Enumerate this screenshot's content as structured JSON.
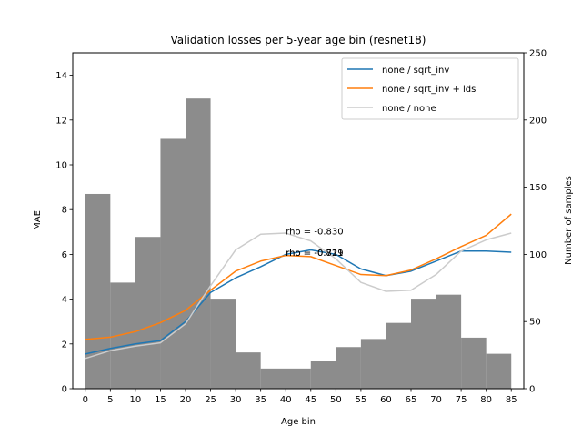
{
  "chart_data": {
    "type": "line",
    "title": "Validation losses per 5-year age bin (resnet18)",
    "xlabel": "Age bin",
    "ylabel": "MAE",
    "ylabel_right": "Number of samples",
    "x": [
      0,
      5,
      10,
      15,
      20,
      25,
      30,
      35,
      40,
      45,
      50,
      55,
      60,
      65,
      70,
      75,
      80,
      85
    ],
    "xlim": [
      -2.5,
      87.5
    ],
    "ylim": [
      0,
      15
    ],
    "ylim_right": [
      0,
      250
    ],
    "y_ticks": [
      0,
      2,
      4,
      6,
      8,
      10,
      12,
      14
    ],
    "y_ticks_right": [
      0,
      50,
      100,
      150,
      200,
      250
    ],
    "grid": false,
    "legend_position": "top-right",
    "series": [
      {
        "name": "none / sqrt_inv",
        "color": "#1f77b4",
        "values": [
          1.55,
          1.8,
          2.0,
          2.15,
          3.0,
          4.3,
          4.95,
          5.45,
          6.0,
          6.2,
          6.0,
          5.35,
          5.05,
          5.25,
          5.7,
          6.15,
          6.15,
          6.1
        ]
      },
      {
        "name": "none / sqrt_inv + lds",
        "color": "#ff7f0e",
        "values": [
          2.2,
          2.3,
          2.55,
          2.95,
          3.5,
          4.4,
          5.25,
          5.7,
          5.95,
          5.9,
          5.5,
          5.1,
          5.05,
          5.3,
          5.8,
          6.35,
          6.85,
          7.8
        ]
      },
      {
        "name": "none / none",
        "color": "#cccccc",
        "values": [
          1.35,
          1.7,
          1.9,
          2.05,
          2.9,
          4.6,
          6.2,
          6.9,
          6.95,
          6.6,
          5.8,
          4.75,
          4.35,
          4.4,
          5.1,
          6.15,
          6.65,
          6.95
        ]
      }
    ],
    "bars": {
      "name": "samples per age bin",
      "color": "#808080",
      "axis": "right",
      "values": [
        145,
        79,
        113,
        186,
        216,
        67,
        27,
        15,
        15,
        21,
        31,
        37,
        49,
        67,
        70,
        38,
        26,
        0
      ]
    },
    "annotations": [
      {
        "text": "rho = -0.830",
        "x": 40,
        "y": 7.05
      },
      {
        "text": "rho = -0.821",
        "x": 40,
        "y": 6.1
      },
      {
        "text": "rho = -0.719",
        "x": 40,
        "y": 6.1
      }
    ]
  }
}
